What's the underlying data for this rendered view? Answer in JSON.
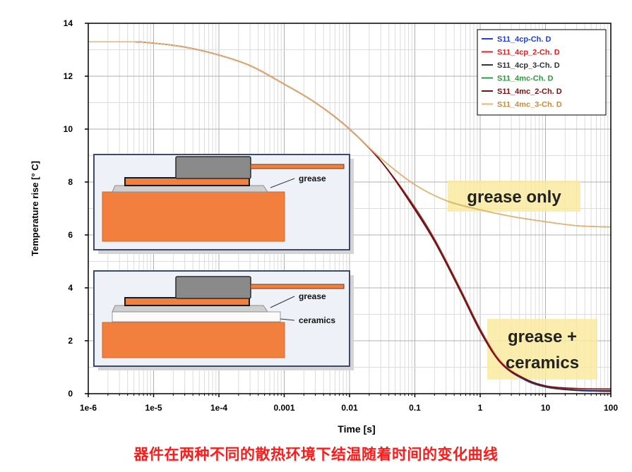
{
  "caption": "器件在两种不同的散热环境下结温随着时间的变化曲线",
  "chart_data": {
    "type": "line",
    "xlabel": "Time [s]",
    "ylabel": "Temperature rise [° C]",
    "x_scale": "log",
    "xlim": [
      1e-06,
      100
    ],
    "ylim": [
      0,
      14
    ],
    "grid": true,
    "legend_position": "top-right",
    "x_ticks": [
      "1e-6",
      "1e-5",
      "1e-4",
      "0.001",
      "0.01",
      "0.1",
      "1",
      "10",
      "100"
    ],
    "y_ticks": [
      "0",
      "2",
      "4",
      "6",
      "8",
      "10",
      "12",
      "14"
    ],
    "series": [
      {
        "name": "S11_4cp-Ch. D",
        "color": "#1f3fd6",
        "x": [
          1e-06,
          5e-06,
          1e-05,
          3e-05,
          0.0001,
          0.0003,
          0.001,
          0.003,
          0.01,
          0.03,
          0.1,
          0.2,
          0.5,
          1,
          2,
          5,
          10,
          30,
          100
        ],
        "y": [
          13.3,
          13.3,
          13.25,
          13.1,
          12.8,
          12.4,
          11.7,
          11.0,
          10.0,
          8.8,
          7.0,
          5.8,
          3.9,
          2.4,
          1.2,
          0.5,
          0.25,
          0.12,
          0.08
        ]
      },
      {
        "name": "S11_4cp_2-Ch. D",
        "color": "#e02020",
        "x": [
          1e-06,
          5e-06,
          1e-05,
          3e-05,
          0.0001,
          0.0003,
          0.001,
          0.003,
          0.01,
          0.03,
          0.1,
          0.2,
          0.5,
          1,
          2,
          5,
          10,
          30,
          100
        ],
        "y": [
          13.3,
          13.3,
          13.25,
          13.1,
          12.8,
          12.4,
          11.7,
          11.0,
          10.0,
          8.8,
          7.05,
          5.85,
          3.95,
          2.45,
          1.25,
          0.55,
          0.28,
          0.15,
          0.1
        ]
      },
      {
        "name": "S11_4cp_3-Ch. D",
        "color": "#333333",
        "x": [
          1e-06,
          5e-06,
          1e-05,
          3e-05,
          0.0001,
          0.0003,
          0.001,
          0.003,
          0.01,
          0.03,
          0.1,
          0.2,
          0.5,
          1,
          2,
          5,
          10,
          30,
          100
        ],
        "y": [
          13.3,
          13.3,
          13.25,
          13.1,
          12.8,
          12.4,
          11.7,
          11.0,
          10.0,
          8.8,
          7.0,
          5.8,
          3.9,
          2.4,
          1.2,
          0.52,
          0.26,
          0.14,
          0.12
        ]
      },
      {
        "name": "S11_4mc-Ch. D",
        "color": "#2a9d3a",
        "x": [
          1e-06,
          5e-06,
          1e-05,
          3e-05,
          0.0001,
          0.0003,
          0.001,
          0.003,
          0.01,
          0.03,
          0.1,
          0.3,
          1,
          3,
          10,
          30,
          100
        ],
        "y": [
          13.3,
          13.3,
          13.25,
          13.1,
          12.8,
          12.4,
          11.7,
          11.0,
          10.0,
          8.9,
          7.9,
          7.3,
          6.95,
          6.7,
          6.5,
          6.35,
          6.3
        ]
      },
      {
        "name": "S11_4mc_2-Ch. D",
        "color": "#7a1010",
        "x": [
          1e-06,
          5e-06,
          1e-05,
          3e-05,
          0.0001,
          0.0003,
          0.001,
          0.003,
          0.01,
          0.03,
          0.1,
          0.2,
          0.5,
          1,
          2,
          5,
          10,
          30,
          100
        ],
        "y": [
          13.3,
          13.3,
          13.25,
          13.1,
          12.8,
          12.4,
          11.7,
          11.0,
          10.0,
          8.8,
          6.95,
          5.75,
          3.85,
          2.35,
          1.2,
          0.55,
          0.3,
          0.2,
          0.18
        ]
      },
      {
        "name": "S11_4mc_3-Ch. D",
        "color": "#f0b070",
        "x": [
          1e-06,
          5e-06,
          1e-05,
          3e-05,
          0.0001,
          0.0003,
          0.001,
          0.003,
          0.01,
          0.03,
          0.1,
          0.3,
          1,
          3,
          10,
          30,
          100
        ],
        "y": [
          13.3,
          13.3,
          13.25,
          13.1,
          12.8,
          12.4,
          11.7,
          11.0,
          10.0,
          8.9,
          7.9,
          7.3,
          6.95,
          6.7,
          6.5,
          6.35,
          6.3
        ]
      }
    ],
    "annotations": [
      {
        "name": "grease-only",
        "text": "grease only"
      },
      {
        "name": "grease-ceramics",
        "lines": [
          "grease +",
          "ceramics"
        ]
      }
    ],
    "insets": {
      "top": {
        "labels": [
          "grease"
        ]
      },
      "bottom": {
        "labels": [
          "grease",
          "ceramics"
        ]
      }
    }
  }
}
